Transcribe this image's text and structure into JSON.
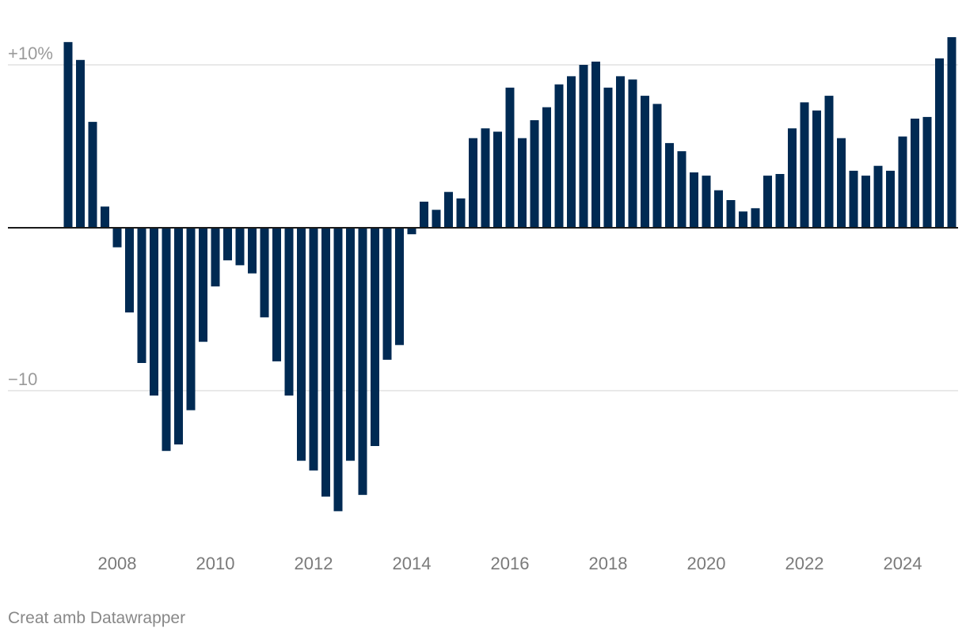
{
  "chart_data": {
    "type": "bar",
    "y_ticks": [
      {
        "value": 10,
        "label": "+10%"
      },
      {
        "value": -10,
        "label": "−10"
      }
    ],
    "x_ticks": [
      {
        "value": 2008,
        "label": "2008"
      },
      {
        "value": 2010,
        "label": "2010"
      },
      {
        "value": 2012,
        "label": "2012"
      },
      {
        "value": 2014,
        "label": "2014"
      },
      {
        "value": 2016,
        "label": "2016"
      },
      {
        "value": 2018,
        "label": "2018"
      },
      {
        "value": 2020,
        "label": "2020"
      },
      {
        "value": 2022,
        "label": "2022"
      },
      {
        "value": 2024,
        "label": "2024"
      }
    ],
    "ylim": [
      -18.5,
      11.8
    ],
    "xlim": [
      2006.8,
      2025.2
    ],
    "grid": true,
    "bar_color": "#002a53",
    "x": [
      2007.0,
      2007.25,
      2007.5,
      2007.75,
      2008.0,
      2008.25,
      2008.5,
      2008.75,
      2009.0,
      2009.25,
      2009.5,
      2009.75,
      2010.0,
      2010.25,
      2010.5,
      2010.75,
      2011.0,
      2011.25,
      2011.5,
      2011.75,
      2012.0,
      2012.25,
      2012.5,
      2012.75,
      2013.0,
      2013.25,
      2013.5,
      2013.75,
      2014.0,
      2014.25,
      2014.5,
      2014.75,
      2015.0,
      2015.25,
      2015.5,
      2015.75,
      2016.0,
      2016.25,
      2016.5,
      2016.75,
      2017.0,
      2017.25,
      2017.5,
      2017.75,
      2018.0,
      2018.25,
      2018.5,
      2018.75,
      2019.0,
      2019.25,
      2019.5,
      2019.75,
      2020.0,
      2020.25,
      2020.5,
      2020.75,
      2021.0,
      2021.25,
      2021.5,
      2021.75,
      2022.0,
      2022.25,
      2022.5,
      2022.75,
      2023.0,
      2023.25,
      2023.5,
      2023.75,
      2024.0,
      2024.25,
      2024.5,
      2024.75,
      2025.0
    ],
    "values": [
      11.4,
      10.3,
      6.5,
      1.3,
      -1.2,
      -5.2,
      -8.3,
      -10.3,
      -13.7,
      -13.3,
      -11.2,
      -7.0,
      -3.6,
      -2.0,
      -2.3,
      -2.8,
      -5.5,
      -8.2,
      -10.3,
      -14.3,
      -14.9,
      -16.5,
      -17.4,
      -14.3,
      -16.4,
      -13.4,
      -8.1,
      -7.2,
      -0.4,
      1.6,
      1.1,
      2.2,
      1.8,
      5.5,
      6.1,
      5.9,
      8.6,
      5.5,
      6.6,
      7.4,
      8.8,
      9.3,
      10.0,
      10.2,
      8.6,
      9.3,
      9.1,
      8.1,
      7.6,
      5.2,
      4.7,
      3.4,
      3.2,
      2.3,
      1.7,
      1.0,
      1.2,
      3.2,
      3.3,
      6.1,
      7.7,
      7.2,
      8.1,
      5.5,
      3.5,
      3.2,
      3.8,
      3.5,
      5.6,
      6.7,
      6.8,
      10.4,
      11.7
    ]
  },
  "footer": {
    "credit": "Creat amb Datawrapper"
  }
}
